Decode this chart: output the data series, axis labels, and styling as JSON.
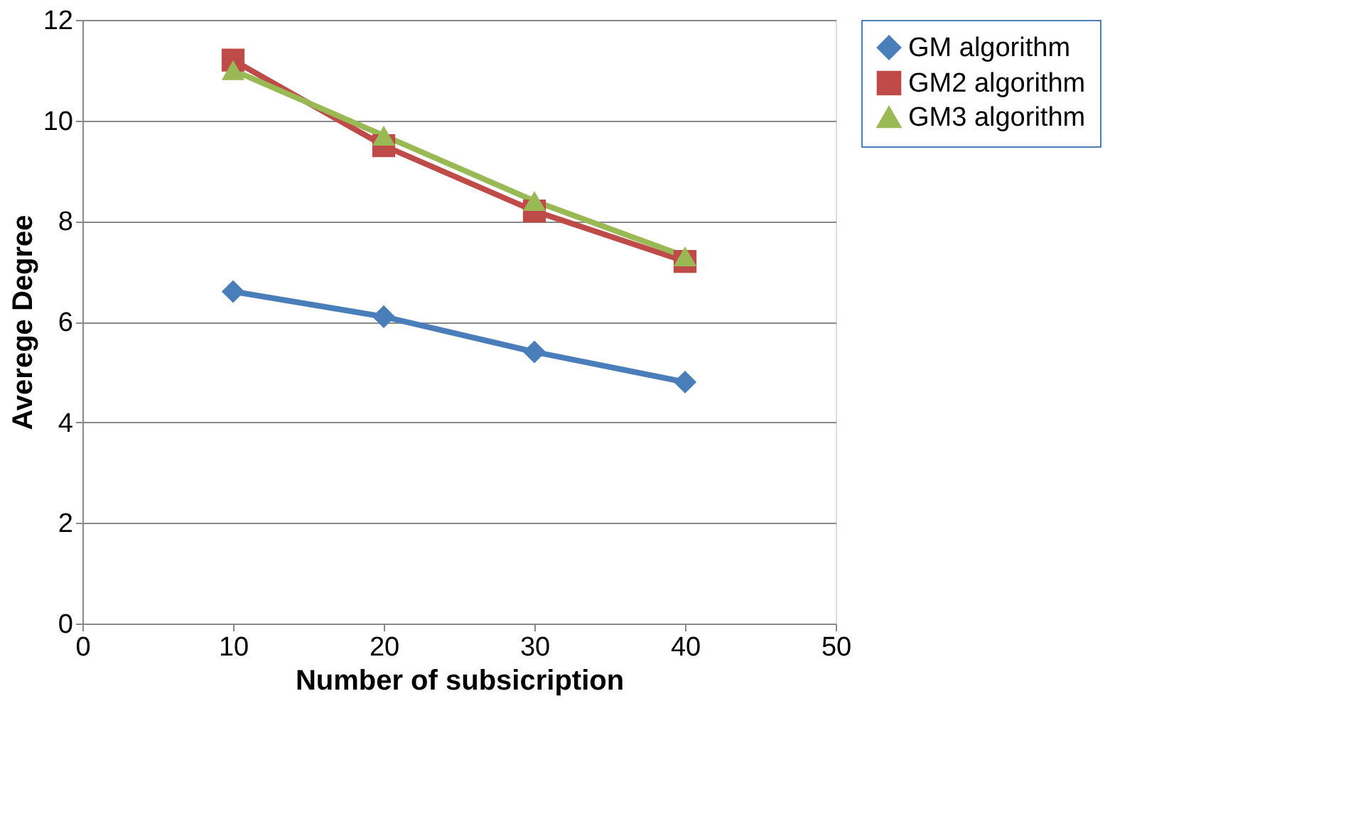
{
  "chart_data": {
    "type": "line",
    "xlabel": "Number of subsicription",
    "ylabel": "Averege Degree",
    "x": [
      10,
      20,
      30,
      40
    ],
    "series": [
      {
        "name": "GM algorithm",
        "color": "#4a7ebb",
        "marker": "diamond",
        "values": [
          6.6,
          6.1,
          5.4,
          4.8
        ]
      },
      {
        "name": "GM2 algorithm",
        "color": "#be4b48",
        "marker": "square",
        "values": [
          11.2,
          9.5,
          8.2,
          7.2
        ]
      },
      {
        "name": "GM3 algorithm",
        "color": "#98b954",
        "marker": "triangle",
        "values": [
          11.0,
          9.7,
          8.4,
          7.3
        ]
      }
    ],
    "xlim": [
      0,
      50
    ],
    "xticks": [
      0,
      10,
      20,
      30,
      40,
      50
    ],
    "ylim": [
      0,
      12
    ],
    "yticks": [
      0,
      2,
      4,
      6,
      8,
      10,
      12
    ],
    "grid": "y",
    "legend": "right",
    "line_style": "solid"
  }
}
